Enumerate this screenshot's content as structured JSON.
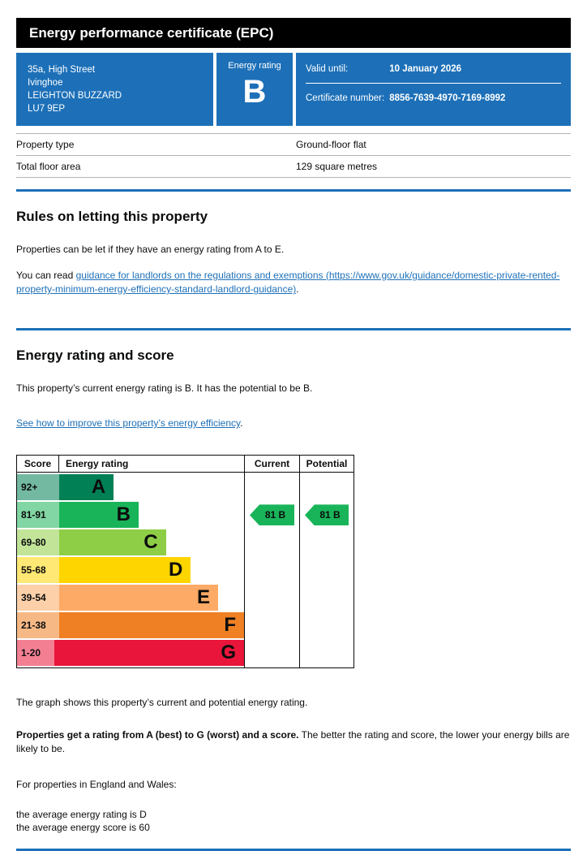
{
  "page": {
    "accent_blue": "#1d70b8",
    "header_title": "Energy performance certificate (EPC)"
  },
  "banner": {
    "address_lines": [
      "35a, High Street",
      "Ivinghoe",
      "LEIGHTON BUZZARD",
      "LU7 9EP"
    ],
    "rating_label": "Energy rating",
    "rating_value": "B",
    "valid_label": "Valid until:",
    "valid_value": "10 January 2026",
    "certificate_label": "Certificate number:",
    "certificate_value": "8856-7639-4970-7169-8992"
  },
  "summary_rows": [
    {
      "label": "Property type",
      "value": "Ground-floor flat"
    },
    {
      "label": "Total floor area",
      "value": "129 square metres"
    }
  ],
  "letting_section": {
    "heading": "Rules on letting this property",
    "para1": "Properties can be let if they have an energy rating from A to E.",
    "para2_prefix": "You can read ",
    "para2_link_text": "guidance for landlords on the regulations and exemptions (https://www.gov.uk/guidance/domestic-private-rented-property-minimum-energy-efficiency-standard-landlord-guidance)",
    "para2_suffix": "."
  },
  "rating_section": {
    "heading": "Energy rating and score",
    "para1": "This property’s current energy rating is B. It has the potential to be B.",
    "improve_link_text": "See how to improve this property’s energy efficiency",
    "improve_link_suffix": "."
  },
  "chart_data": {
    "type": "epc-rating-bands",
    "headers": {
      "score": "Score",
      "rating": "Energy rating",
      "current": "Current",
      "potential": "Potential"
    },
    "bands": [
      {
        "score": "92+",
        "letter": "A",
        "color": "#008054",
        "tint": "#73b9a1",
        "width_pct": 24
      },
      {
        "score": "81-91",
        "letter": "B",
        "color": "#19b459",
        "tint": "#81d6a4",
        "width_pct": 35
      },
      {
        "score": "69-80",
        "letter": "C",
        "color": "#8dce46",
        "tint": "#c1e499",
        "width_pct": 47
      },
      {
        "score": "55-68",
        "letter": "D",
        "color": "#ffd500",
        "tint": "#ffe873",
        "width_pct": 58
      },
      {
        "score": "39-54",
        "letter": "E",
        "color": "#fcaa65",
        "tint": "#fed0aa",
        "width_pct": 70
      },
      {
        "score": "21-38",
        "letter": "F",
        "color": "#ef8023",
        "tint": "#f6b986",
        "width_pct": 82
      },
      {
        "score": "1-20",
        "letter": "G",
        "color": "#e9153b",
        "tint": "#f37f93",
        "width_pct": 94
      }
    ],
    "current": {
      "label": "81 B",
      "band_index": 1,
      "arrow_color": "#19b459"
    },
    "potential": {
      "label": "81 B",
      "band_index": 1,
      "arrow_color": "#19b459"
    }
  },
  "footer": {
    "para1": "The graph shows this property’s current and potential energy rating.",
    "para2_bold": "Properties get a rating from A (best) to G (worst) and a score.",
    "para2_rest": " The better the rating and score, the lower your energy bills are likely to be.",
    "para3": "For properties in England and Wales:",
    "avg_line1": "the average energy rating is D",
    "avg_line2": "the average energy score is 60"
  }
}
